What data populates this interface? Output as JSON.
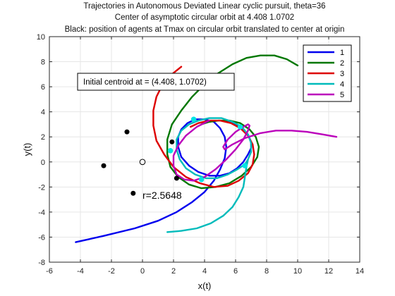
{
  "chart_data": {
    "type": "line",
    "title": [
      "Trajectories in Autonomous Deviated Linear cyclic pursuit, theta=36",
      "Center of asymptotic circular orbit at  4.408       1.0702",
      "Black: position of agents at Tmax on circular orbit translated to center at origin"
    ],
    "xlabel": "x(t)",
    "ylabel": "y(t)",
    "xlim": [
      -6,
      14
    ],
    "ylim": [
      -8,
      10
    ],
    "xticks": [
      -6,
      -4,
      -2,
      0,
      2,
      4,
      6,
      8,
      10,
      12,
      14
    ],
    "yticks": [
      -8,
      -6,
      -4,
      -2,
      0,
      2,
      4,
      6,
      8,
      10
    ],
    "grid": true,
    "legend_position": "top-right",
    "center": [
      4.408,
      1.0702
    ],
    "series": [
      {
        "name": "1",
        "color": "#0000ee",
        "x": [
          -4.3,
          -2.5,
          -0.5,
          1.0,
          2.2,
          3.2,
          4.0,
          4.6,
          5.0,
          5.3,
          5.4,
          5.3,
          5.0,
          4.6,
          4.0,
          3.4,
          2.9,
          2.5,
          2.3,
          2.3,
          2.5,
          3.0,
          3.6,
          4.3,
          5.0,
          5.6,
          6.1,
          6.5,
          6.8,
          7.0,
          7.0,
          6.8,
          6.4,
          5.9,
          5.3
        ],
        "y": [
          -6.4,
          -5.9,
          -5.3,
          -4.7,
          -4.0,
          -3.2,
          -2.4,
          -1.5,
          -0.6,
          0.3,
          1.2,
          2.0,
          2.7,
          3.2,
          3.4,
          3.4,
          3.1,
          2.6,
          2.0,
          1.2,
          0.4,
          -0.3,
          -0.8,
          -1.1,
          -1.1,
          -0.9,
          -0.5,
          0.0,
          0.6,
          1.1,
          1.6,
          2.2,
          2.7,
          3.1,
          3.3
        ]
      },
      {
        "name": "2",
        "color": "#007700",
        "x": [
          10.0,
          9.3,
          8.5,
          7.6,
          6.7,
          5.8,
          4.9,
          4.0,
          3.2,
          2.5,
          1.9,
          1.6,
          1.6,
          1.8,
          2.3,
          3.0,
          3.8,
          4.7,
          5.6,
          6.4,
          7.0,
          7.4,
          7.5,
          7.3,
          6.9,
          6.3,
          5.6,
          4.9,
          4.3,
          3.8
        ],
        "y": [
          7.7,
          8.2,
          8.5,
          8.5,
          8.3,
          7.8,
          7.1,
          6.2,
          5.2,
          4.1,
          3.0,
          1.8,
          0.6,
          -0.4,
          -1.2,
          -1.8,
          -2.1,
          -2.0,
          -1.7,
          -1.1,
          -0.4,
          0.4,
          1.2,
          2.0,
          2.6,
          3.1,
          3.3,
          3.3,
          3.2,
          3.0
        ]
      },
      {
        "name": "3",
        "color": "#dd0000",
        "x": [
          2.5,
          1.9,
          1.3,
          0.9,
          0.7,
          0.7,
          0.9,
          1.4,
          2.0,
          2.8,
          3.7,
          4.6,
          5.5,
          6.2,
          6.8,
          7.1,
          7.2,
          7.1,
          6.8,
          6.3,
          5.7,
          5.0,
          4.3,
          3.6,
          3.1
        ],
        "y": [
          7.6,
          7.0,
          6.2,
          5.2,
          4.1,
          2.9,
          1.7,
          0.6,
          -0.4,
          -1.2,
          -1.7,
          -2.0,
          -1.9,
          -1.5,
          -0.9,
          -0.2,
          0.6,
          1.4,
          2.1,
          2.7,
          3.1,
          3.3,
          3.3,
          3.1,
          2.8
        ]
      },
      {
        "name": "4",
        "color": "#00bbbb",
        "x": [
          1.6,
          2.5,
          3.5,
          4.4,
          5.2,
          5.8,
          6.2,
          6.5,
          6.6,
          6.7,
          6.8,
          7.0,
          7.0,
          6.8,
          6.4,
          5.8,
          5.1,
          4.3,
          3.6,
          3.0,
          2.5,
          2.2,
          2.2,
          2.4,
          2.8,
          3.4,
          4.1,
          4.8,
          5.5,
          6.1,
          6.6,
          6.8
        ],
        "y": [
          -5.6,
          -5.5,
          -5.3,
          -4.9,
          -4.3,
          -3.6,
          -2.8,
          -2.0,
          -1.2,
          -0.4,
          0.2,
          0.8,
          1.5,
          2.2,
          2.8,
          3.2,
          3.5,
          3.5,
          3.3,
          3.0,
          2.5,
          1.8,
          1.0,
          0.2,
          -0.5,
          -1.0,
          -1.3,
          -1.3,
          -1.0,
          -0.6,
          -0.2,
          0.2
        ]
      },
      {
        "name": "5",
        "color": "#bb00bb",
        "x": [
          12.5,
          11.6,
          10.6,
          9.6,
          8.6,
          7.6,
          6.6,
          5.8,
          5.3,
          5.2,
          5.5,
          6.0,
          6.5,
          6.8,
          6.9,
          6.8,
          6.5,
          6.0,
          5.4,
          4.7,
          4.0,
          3.3,
          2.7,
          2.2,
          2.0,
          2.0,
          2.3,
          2.8,
          3.5,
          4.3
        ],
        "y": [
          2.0,
          2.2,
          2.4,
          2.5,
          2.5,
          2.3,
          1.9,
          1.4,
          1.0,
          1.2,
          1.8,
          2.4,
          2.8,
          3.0,
          2.9,
          2.5,
          1.8,
          1.0,
          0.2,
          -0.6,
          -1.2,
          -1.5,
          -1.4,
          -1.0,
          -0.3,
          0.5,
          1.3,
          2.1,
          2.8,
          3.3
        ]
      }
    ],
    "markers": {
      "cyan_points": [
        [
          3.3,
          3.4
        ],
        [
          6.3,
          2.8
        ],
        [
          6.6,
          -0.3
        ],
        [
          3.8,
          -1.4
        ],
        [
          1.8,
          0.9
        ]
      ],
      "agents_filled": [
        [
          -1.0,
          2.4
        ],
        [
          -2.5,
          -0.3
        ],
        [
          -0.6,
          -2.5
        ],
        [
          1.9,
          1.6
        ],
        [
          2.2,
          -1.3
        ]
      ],
      "center_open": [
        0.0,
        0.0
      ]
    },
    "annotations": {
      "centroid_text": "Initial centroid at = (4.408,  1.0702)",
      "radius_text": "r=2.5648"
    }
  }
}
